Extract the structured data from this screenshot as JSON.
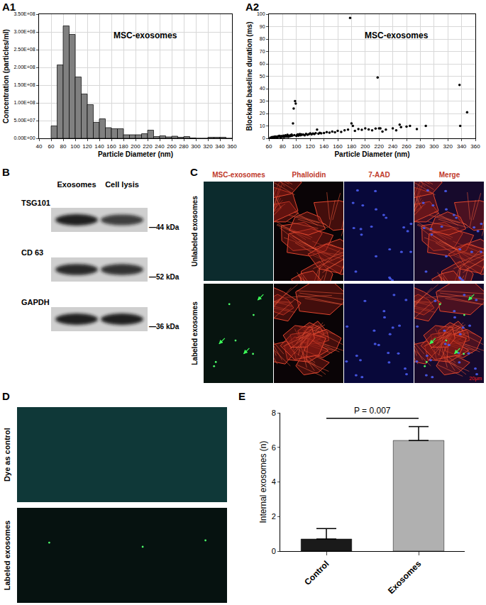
{
  "chart_data": [
    {
      "panel": "A1",
      "type": "histogram",
      "annotation": "MSC-exosomes",
      "x_label": "Particle Diameter (nm)",
      "y_label": "Concentration (particles/ml)",
      "bins": [
        60,
        70,
        80,
        90,
        100,
        110,
        120,
        130,
        140,
        150,
        160,
        170,
        180,
        190,
        200,
        210,
        220,
        230,
        240,
        250,
        260,
        270,
        280,
        290,
        300,
        310,
        320,
        330,
        340,
        350,
        360
      ],
      "values": [
        35000000,
        207000000,
        317000000,
        293000000,
        173000000,
        125000000,
        95000000,
        45000000,
        55000000,
        30000000,
        27000000,
        27000000,
        10000000,
        10000000,
        10000000,
        13000000,
        23000000,
        5000000,
        7000000,
        4000000,
        6000000,
        3000000,
        5000000,
        1000000,
        0,
        0,
        3000000,
        3000000,
        3000000,
        0
      ],
      "color": "#808080",
      "xlim": [
        40,
        360
      ],
      "xticks": [
        40,
        60,
        80,
        100,
        120,
        140,
        160,
        180,
        200,
        220,
        240,
        260,
        280,
        300,
        320,
        340,
        360
      ],
      "ylim": [
        0,
        350000000
      ],
      "yticks": [
        {
          "value": 0,
          "label": "0.00E+00"
        },
        {
          "value": 50000000,
          "label": "5.00E+07"
        },
        {
          "value": 100000000,
          "label": "1.00E+08"
        },
        {
          "value": 150000000,
          "label": "1.50E+08"
        },
        {
          "value": 200000000,
          "label": "2.00E+08"
        },
        {
          "value": 250000000,
          "label": "2.50E+08"
        },
        {
          "value": 300000000,
          "label": "3.00E+08"
        },
        {
          "value": 350000000,
          "label": "3.50E+08"
        }
      ],
      "grid": true
    },
    {
      "panel": "A2",
      "type": "scatter",
      "annotation": "MSC-exosomes",
      "x_label": "Particle Diameter (nm)",
      "y_label": "Blockade baseline duration (ms)",
      "x": [
        62,
        64,
        65,
        66,
        67,
        68,
        69,
        70,
        71,
        72,
        73,
        74,
        75,
        76,
        77,
        78,
        79,
        80,
        81,
        82,
        83,
        84,
        85,
        86,
        87,
        88,
        89,
        90,
        91,
        92,
        93,
        94,
        95,
        96,
        97,
        98,
        99,
        100,
        101,
        102,
        103,
        104,
        105,
        106,
        107,
        108,
        110,
        112,
        114,
        116,
        118,
        120,
        122,
        124,
        126,
        128,
        130,
        132,
        134,
        136,
        140,
        144,
        148,
        152,
        156,
        160,
        165,
        170,
        175,
        178,
        180,
        182,
        185,
        190,
        195,
        200,
        205,
        210,
        215,
        218,
        220,
        222,
        225,
        230,
        240,
        245,
        250,
        252,
        260,
        265,
        275,
        288,
        337,
        338,
        348
      ],
      "values": [
        0.5,
        0.8,
        1,
        0.6,
        1.2,
        0.9,
        1.5,
        1,
        1.3,
        0.8,
        1.6,
        1.1,
        2,
        1.4,
        0.9,
        1.8,
        1.2,
        1.5,
        2.2,
        1,
        1.7,
        2.5,
        1.3,
        1.9,
        2.8,
        1.2,
        2,
        1.6,
        2.4,
        1.8,
        3,
        2.2,
        12,
        24,
        2.6,
        30,
        28,
        1.9,
        2.7,
        3.2,
        2.1,
        2.9,
        3.5,
        2.4,
        3.1,
        2.8,
        3,
        2.5,
        3.6,
        2.8,
        3.3,
        4,
        3.1,
        3.8,
        3.4,
        4.2,
        7,
        3.7,
        4.5,
        4,
        4.3,
        5,
        4.6,
        5.5,
        4.8,
        6,
        5.2,
        6.5,
        7,
        97,
        12,
        10,
        6,
        7.5,
        6.8,
        8,
        7.2,
        6.5,
        7.8,
        49,
        8,
        8,
        5.5,
        7,
        8,
        6.5,
        11,
        9,
        9.5,
        10,
        7.5,
        10,
        43,
        10,
        21
      ],
      "color": "#000000",
      "marker": "circle",
      "xlim": [
        60,
        360
      ],
      "xticks": [
        60,
        80,
        100,
        120,
        140,
        160,
        180,
        200,
        220,
        240,
        260,
        280,
        300,
        320,
        340,
        360
      ],
      "ylim": [
        0,
        100
      ],
      "yticks": [
        0,
        10,
        20,
        30,
        40,
        50,
        60,
        70,
        80,
        90,
        100
      ],
      "grid": true
    },
    {
      "panel": "E",
      "type": "bar",
      "y_label": "Internal exosomes (n)",
      "categories": [
        "Control",
        "Exosomes"
      ],
      "values": [
        0.7,
        6.4
      ],
      "errors": [
        0.6,
        0.8
      ],
      "colors": [
        "#1a1a1a",
        "#b0b0b0"
      ],
      "annotation": "P = 0.007",
      "ylim": [
        0,
        8
      ],
      "yticks": [
        0,
        2,
        4,
        6,
        8
      ],
      "grid": false
    }
  ],
  "western_blot": {
    "panel": "B",
    "lanes": [
      "Exosomes",
      "Cell lysis"
    ],
    "rows": [
      {
        "protein": "TSG101",
        "size_label": "—44 kDa"
      },
      {
        "protein": "CD 63",
        "size_label": "—52 kDa"
      },
      {
        "protein": "GAPDH",
        "size_label": "—36 kDa"
      }
    ]
  },
  "fluorescence": {
    "panel": "C",
    "columns": [
      "MSC-exosomes",
      "Phalloidin",
      "7-AAD",
      "Merge"
    ],
    "rows": [
      "Unlabeled exosomes",
      "Labeled exosomes"
    ],
    "scale_bar": "20μm"
  },
  "dye_uptake": {
    "panel": "D",
    "rows": [
      "Dye as control",
      "Labeled exosomes"
    ]
  }
}
